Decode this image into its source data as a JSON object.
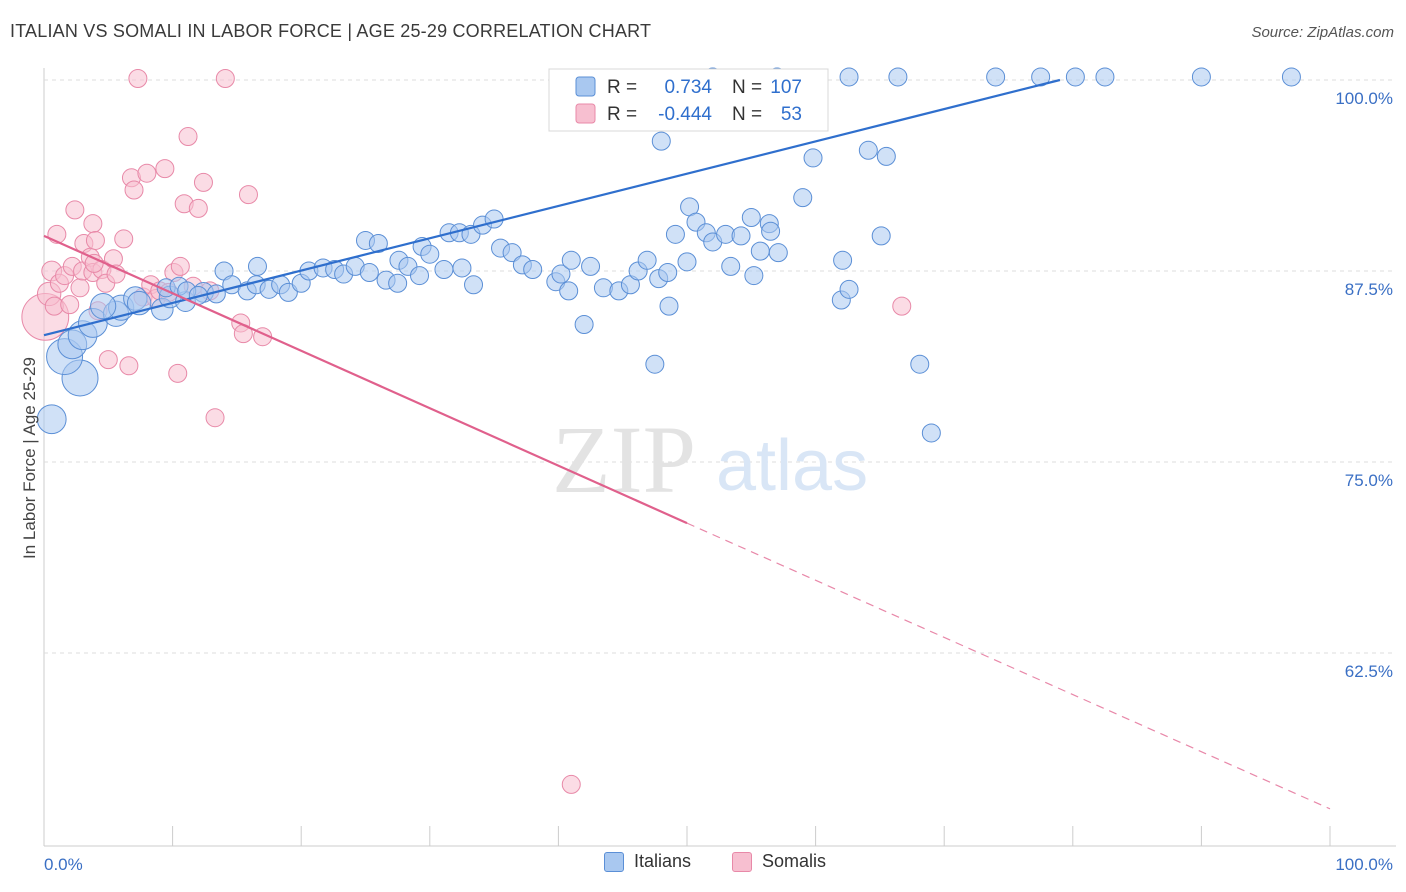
{
  "title": "ITALIAN VS SOMALI IN LABOR FORCE | AGE 25-29 CORRELATION CHART",
  "source": "Source: ZipAtlas.com",
  "watermark": {
    "zip": "ZIP",
    "atlas": "atlas"
  },
  "legend": {
    "italians": {
      "r_label": "R =",
      "r_value": "0.734",
      "n_label": "N =",
      "n_value": "107"
    },
    "somalis": {
      "r_label": "R =",
      "r_value": "-0.444",
      "n_label": "N =",
      "n_value": "53"
    }
  },
  "bottom_legend": {
    "italians": "Italians",
    "somalis": "Somalis"
  },
  "colors": {
    "italians_fill": "#a9c8f0",
    "italians_stroke": "#5b8fd6",
    "italians_line": "#2f6fcd",
    "somalis_fill": "#f7bfd0",
    "somalis_stroke": "#e889a8",
    "somalis_line": "#e0608c",
    "tick": "#3a6fc4",
    "grid": "#dddddd"
  },
  "chart_data": {
    "type": "scatter",
    "title": "ITALIAN VS SOMALI IN LABOR FORCE | AGE 25-29 CORRELATION CHART",
    "xlabel": "",
    "ylabel": "In Labor Force | Age 25-29",
    "xlim": [
      0,
      100
    ],
    "ylim": [
      52,
      102
    ],
    "x_tick_labels": [
      "0.0%",
      "100.0%"
    ],
    "y_ticks": [
      62.5,
      75.0,
      87.5,
      100.0
    ],
    "y_tick_labels": [
      "62.5%",
      "75.0%",
      "87.5%",
      "100.0%"
    ],
    "grid": true,
    "series": [
      {
        "name": "Italians",
        "r": 0.734,
        "n": 107,
        "trend": {
          "x": [
            0,
            79
          ],
          "y": [
            83.3,
            100.0
          ],
          "style": "solid"
        },
        "points": [
          [
            0.6,
            77.8,
            1.6
          ],
          [
            2.8,
            80.5,
            2.0
          ],
          [
            1.6,
            81.9,
            2.0
          ],
          [
            2.2,
            82.7,
            1.6
          ],
          [
            3.0,
            83.3,
            1.6
          ],
          [
            3.8,
            84.1,
            1.6
          ],
          [
            5.6,
            84.7,
            1.4
          ],
          [
            6.0,
            85.1,
            1.4
          ],
          [
            4.6,
            85.2,
            1.4
          ],
          [
            7.1,
            85.7,
            1.3
          ],
          [
            7.4,
            85.4,
            1.3
          ],
          [
            9.2,
            85.0,
            1.2
          ],
          [
            9.8,
            85.8,
            1.2
          ],
          [
            11.0,
            85.5,
            1.1
          ],
          [
            12.4,
            86.1,
            1.1
          ],
          [
            13.4,
            86.0,
            1.0
          ],
          [
            9.5,
            86.4,
            1.0
          ],
          [
            10.5,
            86.5,
            1.0
          ],
          [
            11.1,
            86.2,
            1.0
          ],
          [
            12.0,
            85.9,
            1.0
          ],
          [
            14.0,
            87.5,
            1.0
          ],
          [
            14.6,
            86.6,
            1.0
          ],
          [
            15.8,
            86.2,
            1.0
          ],
          [
            16.5,
            86.6,
            1.0
          ],
          [
            17.5,
            86.3,
            1.0
          ],
          [
            18.4,
            86.6,
            1.0
          ],
          [
            16.6,
            87.8,
            1.0
          ],
          [
            19.0,
            86.1,
            1.0
          ],
          [
            20.0,
            86.7,
            1.0
          ],
          [
            20.6,
            87.5,
            1.0
          ],
          [
            21.7,
            87.7,
            1.0
          ],
          [
            22.6,
            87.6,
            1.0
          ],
          [
            23.3,
            87.3,
            1.0
          ],
          [
            24.2,
            87.8,
            1.0
          ],
          [
            25.3,
            87.4,
            1.0
          ],
          [
            26.6,
            86.9,
            1.0
          ],
          [
            27.6,
            88.2,
            1.0
          ],
          [
            28.3,
            87.8,
            1.0
          ],
          [
            29.4,
            89.1,
            1.0
          ],
          [
            30.0,
            88.6,
            1.0
          ],
          [
            31.1,
            87.6,
            1.0
          ],
          [
            32.5,
            87.7,
            1.0
          ],
          [
            33.4,
            86.6,
            1.0
          ],
          [
            25.0,
            89.5,
            1.0
          ],
          [
            26.0,
            89.3,
            1.0
          ],
          [
            27.5,
            86.7,
            1.0
          ],
          [
            29.2,
            87.2,
            1.0
          ],
          [
            31.5,
            90.0,
            1.0
          ],
          [
            32.3,
            90.0,
            1.0
          ],
          [
            33.2,
            89.9,
            1.0
          ],
          [
            34.1,
            90.5,
            1.0
          ],
          [
            35.0,
            90.9,
            1.0
          ],
          [
            35.5,
            89.0,
            1.0
          ],
          [
            36.4,
            88.7,
            1.0
          ],
          [
            37.2,
            87.9,
            1.0
          ],
          [
            38.0,
            87.6,
            1.0
          ],
          [
            39.8,
            86.8,
            1.0
          ],
          [
            40.2,
            87.3,
            1.0
          ],
          [
            40.8,
            86.2,
            1.0
          ],
          [
            41.0,
            88.2,
            1.0
          ],
          [
            42.5,
            87.8,
            1.0
          ],
          [
            43.5,
            86.4,
            1.0
          ],
          [
            44.7,
            86.2,
            1.0
          ],
          [
            45.6,
            86.6,
            1.0
          ],
          [
            46.2,
            87.5,
            1.0
          ],
          [
            46.9,
            88.2,
            1.0
          ],
          [
            47.8,
            87.0,
            1.0
          ],
          [
            48.5,
            87.4,
            1.0
          ],
          [
            49.1,
            89.9,
            1.0
          ],
          [
            50.2,
            91.7,
            1.0
          ],
          [
            50.7,
            90.7,
            1.0
          ],
          [
            51.5,
            90.0,
            1.0
          ],
          [
            52.0,
            89.4,
            1.0
          ],
          [
            53.0,
            89.9,
            1.0
          ],
          [
            54.2,
            89.8,
            1.0
          ],
          [
            55.0,
            91.0,
            1.0
          ],
          [
            55.7,
            88.8,
            1.0
          ],
          [
            56.4,
            90.6,
            1.0
          ],
          [
            57.1,
            88.7,
            1.0
          ],
          [
            53.4,
            87.8,
            1.0
          ],
          [
            55.2,
            87.2,
            1.0
          ],
          [
            50.0,
            88.1,
            1.0
          ],
          [
            48.6,
            85.2,
            1.0
          ],
          [
            42.0,
            84.0,
            1.0
          ],
          [
            47.5,
            81.4,
            1.0
          ],
          [
            56.5,
            90.1,
            1.0
          ],
          [
            59.0,
            92.3,
            1.0
          ],
          [
            59.8,
            94.9,
            1.0
          ],
          [
            62.0,
            85.6,
            1.0
          ],
          [
            62.6,
            86.3,
            1.0
          ],
          [
            62.1,
            88.2,
            1.0
          ],
          [
            64.1,
            95.4,
            1.0
          ],
          [
            65.5,
            95.0,
            1.0
          ],
          [
            65.1,
            89.8,
            1.0
          ],
          [
            66.4,
            100.2,
            1.0
          ],
          [
            68.1,
            81.4,
            1.0
          ],
          [
            69.0,
            76.9,
            1.0
          ],
          [
            48.0,
            96.0,
            1.0
          ],
          [
            52.0,
            100.2,
            1.0
          ],
          [
            57.0,
            100.2,
            1.0
          ],
          [
            62.6,
            100.2,
            1.0
          ],
          [
            74.0,
            100.2,
            1.0
          ],
          [
            77.5,
            100.2,
            1.0
          ],
          [
            80.2,
            100.2,
            1.0
          ],
          [
            82.5,
            100.2,
            1.0
          ],
          [
            97.0,
            100.2,
            1.0
          ],
          [
            90.0,
            100.2,
            1.0
          ]
        ]
      },
      {
        "name": "Somalis",
        "r": -0.444,
        "n": 53,
        "trend": {
          "x": [
            0,
            50
          ],
          "y": [
            89.8,
            71.0
          ],
          "style": "solid"
        },
        "trend_extension": {
          "x": [
            50,
            100
          ],
          "y": [
            71.0,
            52.3
          ],
          "style": "dashed"
        },
        "points": [
          [
            0.1,
            84.5,
            2.6
          ],
          [
            0.4,
            86.0,
            1.3
          ],
          [
            0.6,
            87.5,
            1.1
          ],
          [
            0.8,
            85.2,
            1.0
          ],
          [
            1.2,
            86.7,
            1.0
          ],
          [
            1.6,
            87.2,
            1.0
          ],
          [
            1.0,
            89.9,
            1.0
          ],
          [
            2.0,
            85.3,
            1.0
          ],
          [
            2.2,
            87.8,
            1.0
          ],
          [
            2.4,
            91.5,
            1.0
          ],
          [
            2.8,
            86.4,
            1.0
          ],
          [
            3.0,
            87.5,
            1.0
          ],
          [
            3.1,
            89.3,
            1.0
          ],
          [
            3.6,
            88.4,
            1.0
          ],
          [
            3.8,
            87.4,
            1.0
          ],
          [
            3.8,
            90.6,
            1.0
          ],
          [
            4.0,
            89.5,
            1.0
          ],
          [
            4.2,
            84.9,
            1.0
          ],
          [
            4.5,
            87.6,
            1.0
          ],
          [
            4.8,
            86.7,
            1.0
          ],
          [
            5.0,
            81.7,
            1.0
          ],
          [
            5.4,
            88.3,
            1.0
          ],
          [
            5.6,
            87.3,
            1.0
          ],
          [
            6.2,
            89.6,
            1.0
          ],
          [
            6.6,
            81.3,
            1.0
          ],
          [
            6.8,
            93.6,
            1.0
          ],
          [
            7.0,
            92.8,
            1.0
          ],
          [
            7.3,
            100.1,
            1.0
          ],
          [
            7.7,
            85.8,
            1.0
          ],
          [
            8.0,
            93.9,
            1.0
          ],
          [
            8.3,
            86.6,
            1.0
          ],
          [
            8.7,
            85.7,
            1.0
          ],
          [
            9.0,
            86.2,
            1.0
          ],
          [
            9.4,
            94.2,
            1.0
          ],
          [
            9.7,
            86.1,
            1.0
          ],
          [
            10.1,
            87.4,
            1.0
          ],
          [
            10.4,
            80.8,
            1.0
          ],
          [
            10.6,
            87.8,
            1.0
          ],
          [
            10.9,
            91.9,
            1.0
          ],
          [
            11.2,
            96.3,
            1.0
          ],
          [
            11.6,
            86.5,
            1.0
          ],
          [
            12.0,
            91.6,
            1.0
          ],
          [
            12.4,
            93.3,
            1.0
          ],
          [
            12.9,
            86.2,
            1.0
          ],
          [
            13.3,
            77.9,
            1.0
          ],
          [
            14.1,
            100.1,
            1.0
          ],
          [
            15.3,
            84.1,
            1.0
          ],
          [
            15.5,
            83.4,
            1.0
          ],
          [
            15.9,
            92.5,
            1.0
          ],
          [
            17.0,
            83.2,
            1.0
          ],
          [
            41.0,
            53.9,
            1.0
          ],
          [
            66.7,
            85.2,
            1.0
          ],
          [
            3.9,
            88.0,
            1.0
          ]
        ]
      }
    ]
  }
}
